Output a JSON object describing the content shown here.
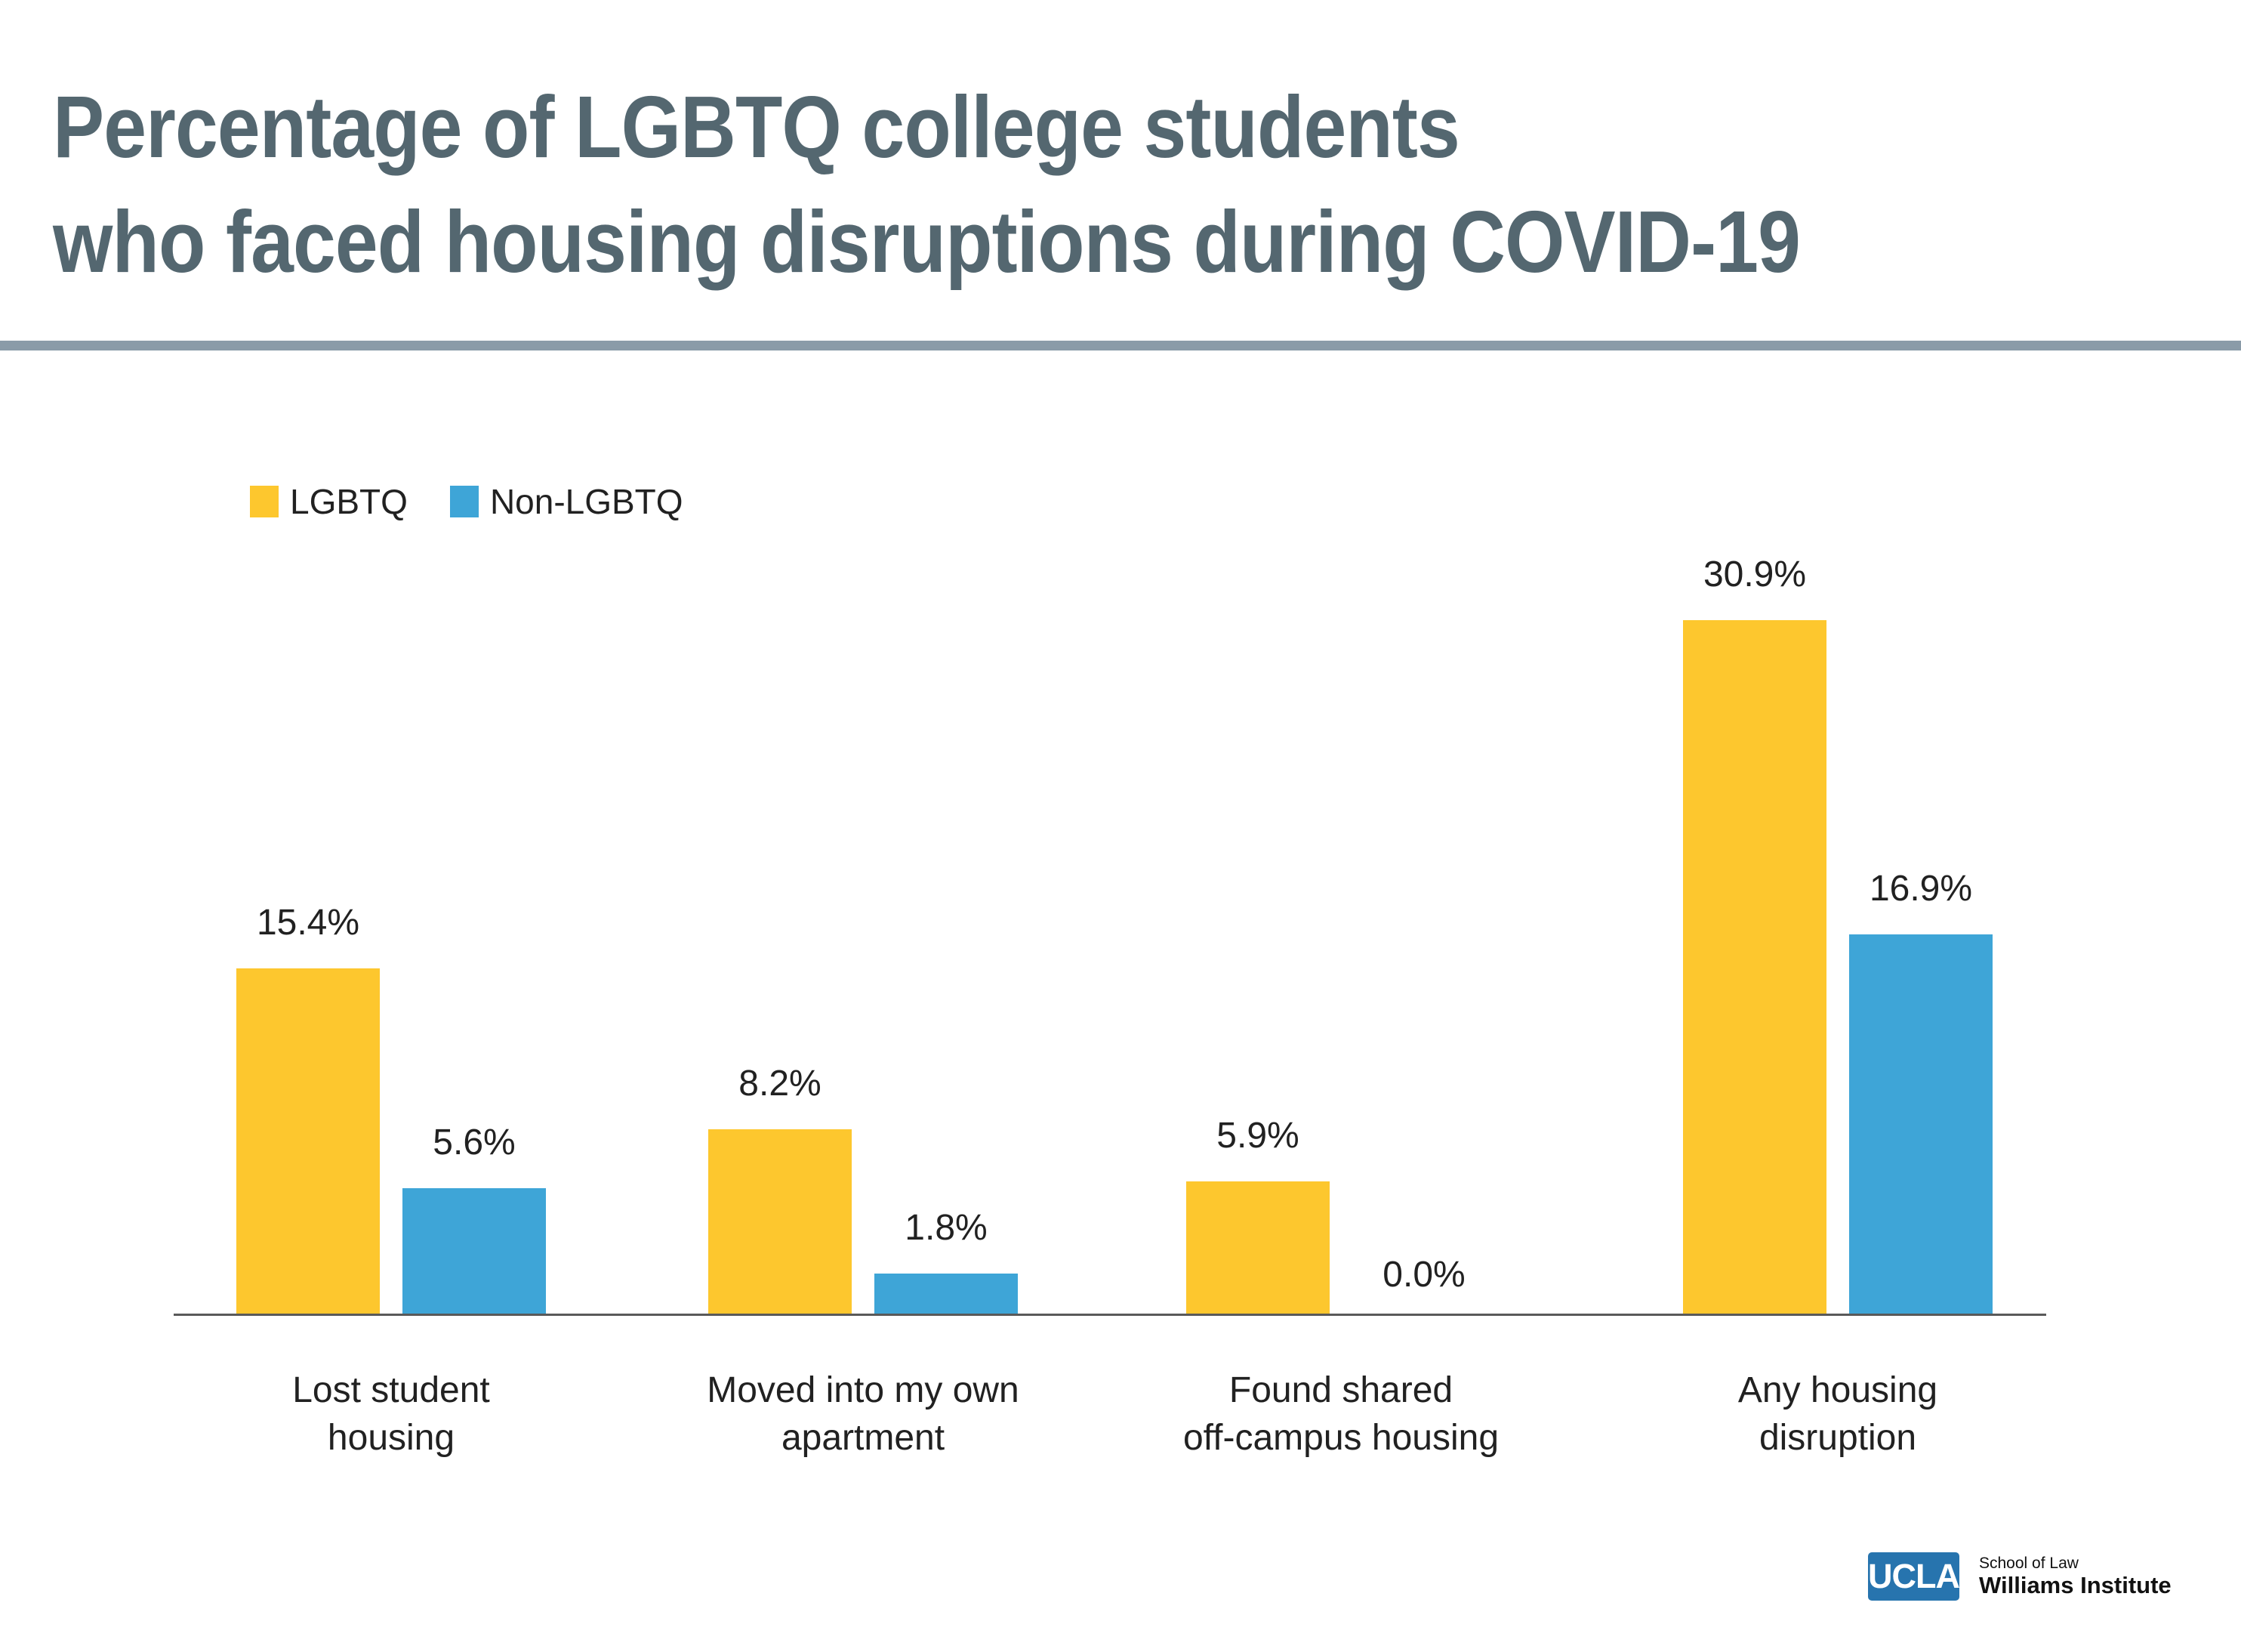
{
  "title": {
    "line1": "Percentage of LGBTQ college students",
    "line2": "who faced housing disruptions during COVID-19"
  },
  "legend": {
    "items": [
      {
        "label": "LGBTQ",
        "color": "#FDC72E"
      },
      {
        "label": "Non-LGBTQ",
        "color": "#3EA5D7"
      }
    ]
  },
  "chart_data": {
    "type": "bar",
    "title": "Percentage of LGBTQ college students who faced housing disruptions during COVID-19",
    "categories": [
      "Lost student housing",
      "Moved into my own apartment",
      "Found shared off-campus housing",
      "Any housing disruption"
    ],
    "categories_lines": [
      [
        "Lost student",
        "housing"
      ],
      [
        "Moved into my own",
        "apartment"
      ],
      [
        "Found shared",
        "off-campus housing"
      ],
      [
        "Any housing",
        "disruption"
      ]
    ],
    "series": [
      {
        "name": "LGBTQ",
        "color": "#FDC72E",
        "values": [
          15.4,
          8.2,
          5.9,
          30.9
        ],
        "labels": [
          "15.4%",
          "8.2%",
          "5.9%",
          "30.9%"
        ]
      },
      {
        "name": "Non-LGBTQ",
        "color": "#3EA5D7",
        "values": [
          5.6,
          1.8,
          0.0,
          16.9
        ],
        "labels": [
          "5.6%",
          "1.8%",
          "0.0%",
          "16.9%"
        ]
      }
    ],
    "xlabel": "",
    "ylabel": "",
    "ylim": [
      0,
      33
    ],
    "grid": false,
    "y_axis_shown": false,
    "legend_position": "top-left",
    "value_label_format": "percent"
  },
  "footer": {
    "logo_text": "UCLA",
    "org_line1": "School of Law",
    "org_line2": "Williams Institute"
  },
  "colors": {
    "title": "#546770",
    "divider": "#8A9BA8",
    "axis": "#595959",
    "text": "#212121",
    "ucla_blue": "#2774AE",
    "background": "#FFFFFF"
  }
}
